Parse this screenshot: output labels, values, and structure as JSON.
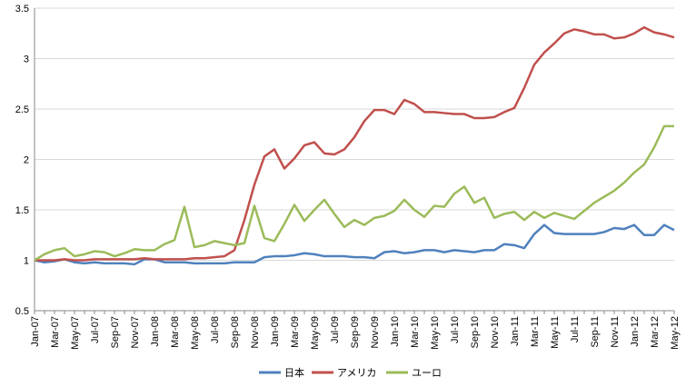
{
  "chart_data": {
    "type": "line",
    "categories": [
      "Jan-07",
      null,
      "Mar-07",
      null,
      "May-07",
      null,
      "Jul-07",
      null,
      "Sep-07",
      null,
      "Nov-07",
      null,
      "Jan-08",
      null,
      "Mar-08",
      null,
      "May-08",
      null,
      "Jul-08",
      null,
      "Sep-08",
      null,
      "Nov-08",
      null,
      "Jan-09",
      null,
      "Mar-09",
      null,
      "May-09",
      null,
      "Jul-09",
      null,
      "Sep-09",
      null,
      "Nov-09",
      null,
      "Jan-10",
      null,
      "Mar-10",
      null,
      "May-10",
      null,
      "Jul-10",
      null,
      "Sep-10",
      null,
      "Nov-10",
      null,
      "Jan-11",
      null,
      "Mar-11",
      null,
      "May-11",
      null,
      "Jul-11",
      null,
      "Sep-11",
      null,
      "Nov-11",
      null,
      "Jan-12",
      null,
      "Mar-12",
      null,
      "May-12"
    ],
    "series": [
      {
        "name": "日本",
        "color": "#4f81bd",
        "values": [
          1.0,
          0.98,
          0.99,
          1.01,
          0.98,
          0.97,
          0.98,
          0.97,
          0.97,
          0.97,
          0.96,
          1.01,
          1.01,
          0.98,
          0.98,
          0.98,
          0.97,
          0.97,
          0.97,
          0.97,
          0.98,
          0.98,
          0.98,
          1.03,
          1.04,
          1.04,
          1.05,
          1.07,
          1.06,
          1.04,
          1.04,
          1.04,
          1.03,
          1.03,
          1.02,
          1.08,
          1.09,
          1.07,
          1.08,
          1.1,
          1.1,
          1.08,
          1.1,
          1.09,
          1.08,
          1.1,
          1.1,
          1.16,
          1.15,
          1.12,
          1.26,
          1.35,
          1.27,
          1.26,
          1.26,
          1.26,
          1.26,
          1.28,
          1.32,
          1.31,
          1.35,
          1.25,
          1.25,
          1.35,
          1.3
        ]
      },
      {
        "name": "アメリカ",
        "color": "#c0504d",
        "values": [
          1.0,
          1.0,
          1.0,
          1.01,
          1.0,
          1.0,
          1.01,
          1.01,
          1.01,
          1.01,
          1.01,
          1.02,
          1.01,
          1.01,
          1.01,
          1.01,
          1.02,
          1.02,
          1.03,
          1.04,
          1.1,
          1.4,
          1.75,
          2.03,
          2.1,
          1.91,
          2.01,
          2.14,
          2.17,
          2.06,
          2.05,
          2.1,
          2.22,
          2.38,
          2.49,
          2.49,
          2.45,
          2.59,
          2.55,
          2.47,
          2.47,
          2.46,
          2.45,
          2.45,
          2.41,
          2.41,
          2.42,
          2.47,
          2.51,
          2.71,
          2.94,
          3.06,
          3.15,
          3.25,
          3.29,
          3.27,
          3.24,
          3.24,
          3.2,
          3.21,
          3.25,
          3.31,
          3.26,
          3.24,
          3.21
        ]
      },
      {
        "name": "ユーロ",
        "color": "#9bbb59",
        "values": [
          1.0,
          1.06,
          1.1,
          1.12,
          1.04,
          1.06,
          1.09,
          1.08,
          1.04,
          1.07,
          1.11,
          1.1,
          1.1,
          1.16,
          1.2,
          1.53,
          1.13,
          1.15,
          1.19,
          1.17,
          1.15,
          1.17,
          1.54,
          1.22,
          1.19,
          1.36,
          1.55,
          1.39,
          1.5,
          1.6,
          1.46,
          1.33,
          1.4,
          1.35,
          1.42,
          1.44,
          1.49,
          1.6,
          1.5,
          1.43,
          1.54,
          1.53,
          1.66,
          1.73,
          1.57,
          1.62,
          1.42,
          1.46,
          1.48,
          1.4,
          1.48,
          1.42,
          1.47,
          1.44,
          1.41,
          1.49,
          1.57,
          1.63,
          1.69,
          1.77,
          1.87,
          1.95,
          2.12,
          2.33,
          2.33
        ]
      }
    ],
    "ylim": [
      0.5,
      3.5
    ],
    "yticks": [
      0.5,
      1,
      1.5,
      2,
      2.5,
      3,
      3.5
    ],
    "grid": true,
    "legend": "bottom"
  }
}
